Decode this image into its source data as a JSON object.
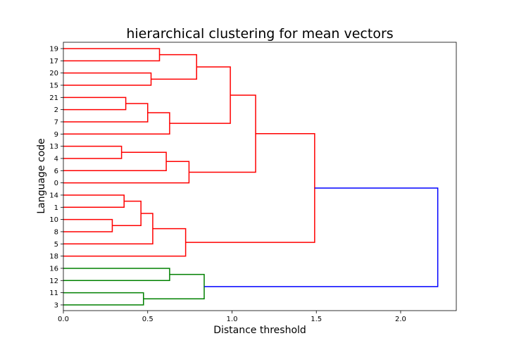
{
  "chart_data": {
    "type": "dendrogram",
    "title": "hierarchical clustering for mean vectors",
    "xlabel": "Distance threshold",
    "ylabel": "Language code",
    "xlim": [
      0.0,
      2.33
    ],
    "xticks": [
      "0.0",
      "0.5",
      "1.0",
      "1.5",
      "2.0"
    ],
    "xtick_values": [
      0.0,
      0.5,
      1.0,
      1.5,
      2.0
    ],
    "leaves": [
      "19",
      "17",
      "20",
      "15",
      "21",
      "2",
      "7",
      "9",
      "13",
      "4",
      "6",
      "0",
      "14",
      "1",
      "10",
      "8",
      "5",
      "18",
      "16",
      "12",
      "11",
      "3"
    ],
    "colors": {
      "red_cluster": "#ff0000",
      "green_cluster": "#008000",
      "above_threshold": "#0000ff"
    },
    "links": [
      {
        "left": "19",
        "right": "17",
        "height": 0.57,
        "color": "red_cluster"
      },
      {
        "left": "20",
        "right": "15",
        "height": 0.52,
        "color": "red_cluster"
      },
      {
        "left": "L0",
        "right": "L1",
        "height": 0.79,
        "color": "red_cluster"
      },
      {
        "left": "21",
        "right": "2",
        "height": 0.37,
        "color": "red_cluster"
      },
      {
        "left": "L3",
        "right": "7",
        "height": 0.5,
        "color": "red_cluster"
      },
      {
        "left": "L4",
        "right": "9",
        "height": 0.63,
        "color": "red_cluster"
      },
      {
        "left": "L2",
        "right": "L5",
        "height": 0.99,
        "color": "red_cluster"
      },
      {
        "left": "13",
        "right": "4",
        "height": 0.345,
        "color": "red_cluster"
      },
      {
        "left": "L7",
        "right": "6",
        "height": 0.61,
        "color": "red_cluster"
      },
      {
        "left": "L8",
        "right": "0",
        "height": 0.745,
        "color": "red_cluster"
      },
      {
        "left": "L6",
        "right": "L9",
        "height": 1.14,
        "color": "red_cluster"
      },
      {
        "left": "14",
        "right": "1",
        "height": 0.36,
        "color": "red_cluster"
      },
      {
        "left": "10",
        "right": "8",
        "height": 0.29,
        "color": "red_cluster"
      },
      {
        "left": "L11",
        "right": "L12",
        "height": 0.46,
        "color": "red_cluster"
      },
      {
        "left": "L13",
        "right": "5",
        "height": 0.53,
        "color": "red_cluster"
      },
      {
        "left": "L14",
        "right": "18",
        "height": 0.725,
        "color": "red_cluster"
      },
      {
        "left": "L10",
        "right": "L15",
        "height": 1.49,
        "color": "red_cluster"
      },
      {
        "left": "16",
        "right": "12",
        "height": 0.63,
        "color": "green_cluster"
      },
      {
        "left": "11",
        "right": "3",
        "height": 0.475,
        "color": "green_cluster"
      },
      {
        "left": "L17",
        "right": "L18",
        "height": 0.835,
        "color": "green_cluster"
      },
      {
        "left": "L16",
        "right": "L19",
        "height": 2.22,
        "color": "above_threshold"
      }
    ]
  }
}
